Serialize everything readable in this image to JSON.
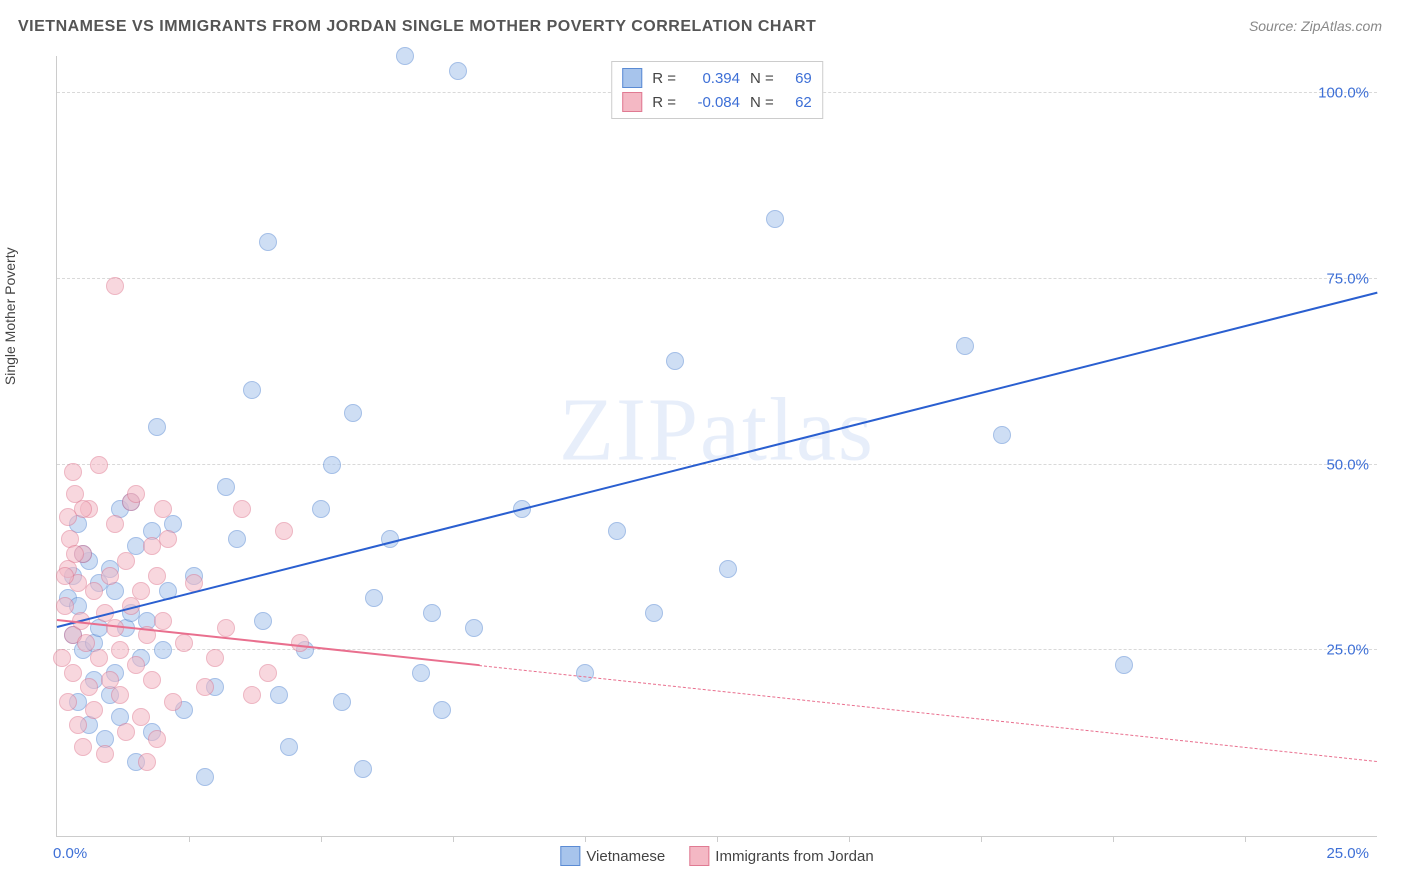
{
  "title_text": "VIETNAMESE VS IMMIGRANTS FROM JORDAN SINGLE MOTHER POVERTY CORRELATION CHART",
  "source_label": "Source: ZipAtlas.com",
  "y_axis_label": "Single Mother Poverty",
  "watermark_text": "ZIPatlas",
  "chart": {
    "type": "scatter",
    "background_color": "#ffffff",
    "grid_color": "#d9d9d9",
    "xlim": [
      0,
      25
    ],
    "ylim": [
      0,
      105
    ],
    "y_gridlines": [
      25,
      50,
      75,
      100
    ],
    "y_tick_labels": [
      "25.0%",
      "50.0%",
      "75.0%",
      "100.0%"
    ],
    "x_origin_label": "0.0%",
    "x_max_label": "25.0%",
    "x_ticks": [
      2.5,
      5,
      7.5,
      10,
      12.5,
      15,
      17.5,
      20,
      22.5
    ],
    "marker_radius": 8,
    "series": [
      {
        "name": "Vietnamese",
        "fill_color": "#a7c4ec",
        "stroke_color": "#5b8bd4",
        "points": [
          [
            0.2,
            32
          ],
          [
            0.3,
            35
          ],
          [
            0.4,
            18
          ],
          [
            0.4,
            42
          ],
          [
            0.5,
            25
          ],
          [
            0.6,
            15
          ],
          [
            0.6,
            37
          ],
          [
            0.7,
            26
          ],
          [
            0.8,
            28
          ],
          [
            0.9,
            13
          ],
          [
            1.0,
            19
          ],
          [
            1.1,
            33
          ],
          [
            1.1,
            22
          ],
          [
            1.2,
            44
          ],
          [
            1.3,
            28
          ],
          [
            1.4,
            45
          ],
          [
            1.5,
            39
          ],
          [
            1.5,
            10
          ],
          [
            1.7,
            29
          ],
          [
            1.8,
            41
          ],
          [
            1.9,
            55
          ],
          [
            2.0,
            25
          ],
          [
            2.2,
            42
          ],
          [
            2.4,
            17
          ],
          [
            2.6,
            35
          ],
          [
            2.8,
            8
          ],
          [
            3.0,
            20
          ],
          [
            3.2,
            47
          ],
          [
            3.4,
            40
          ],
          [
            3.7,
            60
          ],
          [
            3.9,
            29
          ],
          [
            4.0,
            80
          ],
          [
            4.2,
            19
          ],
          [
            4.4,
            12
          ],
          [
            4.7,
            25
          ],
          [
            5.0,
            44
          ],
          [
            5.2,
            50
          ],
          [
            5.4,
            18
          ],
          [
            5.6,
            57
          ],
          [
            5.8,
            9
          ],
          [
            6.0,
            32
          ],
          [
            6.3,
            40
          ],
          [
            6.6,
            105
          ],
          [
            6.9,
            22
          ],
          [
            7.1,
            30
          ],
          [
            7.3,
            17
          ],
          [
            7.6,
            103
          ],
          [
            7.9,
            28
          ],
          [
            8.8,
            44
          ],
          [
            10.0,
            22
          ],
          [
            10.6,
            41
          ],
          [
            11.3,
            30
          ],
          [
            12.7,
            36
          ],
          [
            11.7,
            64
          ],
          [
            13.6,
            83
          ],
          [
            17.2,
            66
          ],
          [
            17.9,
            54
          ],
          [
            20.2,
            23
          ],
          [
            0.3,
            27
          ],
          [
            0.4,
            31
          ],
          [
            0.5,
            38
          ],
          [
            0.7,
            21
          ],
          [
            0.8,
            34
          ],
          [
            1.0,
            36
          ],
          [
            1.2,
            16
          ],
          [
            1.4,
            30
          ],
          [
            1.6,
            24
          ],
          [
            1.8,
            14
          ],
          [
            2.1,
            33
          ]
        ],
        "trend": {
          "x0": 0,
          "y0": 28,
          "x1": 25,
          "y1": 73,
          "color": "#2a5fd0",
          "width": 2.5,
          "solid_until_x": 25
        }
      },
      {
        "name": "Immigrants from Jordan",
        "fill_color": "#f4b8c4",
        "stroke_color": "#e07a92",
        "points": [
          [
            0.1,
            24
          ],
          [
            0.15,
            31
          ],
          [
            0.2,
            18
          ],
          [
            0.2,
            36
          ],
          [
            0.25,
            40
          ],
          [
            0.3,
            22
          ],
          [
            0.3,
            27
          ],
          [
            0.35,
            46
          ],
          [
            0.4,
            34
          ],
          [
            0.4,
            15
          ],
          [
            0.45,
            29
          ],
          [
            0.5,
            12
          ],
          [
            0.5,
            38
          ],
          [
            0.55,
            26
          ],
          [
            0.6,
            44
          ],
          [
            0.6,
            20
          ],
          [
            0.7,
            33
          ],
          [
            0.7,
            17
          ],
          [
            0.8,
            24
          ],
          [
            0.8,
            50
          ],
          [
            0.9,
            30
          ],
          [
            0.9,
            11
          ],
          [
            1.0,
            21
          ],
          [
            1.0,
            35
          ],
          [
            1.1,
            28
          ],
          [
            1.1,
            42
          ],
          [
            1.2,
            19
          ],
          [
            1.2,
            25
          ],
          [
            1.3,
            14
          ],
          [
            1.3,
            37
          ],
          [
            1.4,
            31
          ],
          [
            1.4,
            45
          ],
          [
            1.5,
            46
          ],
          [
            1.5,
            23
          ],
          [
            1.6,
            16
          ],
          [
            1.6,
            33
          ],
          [
            1.7,
            27
          ],
          [
            1.7,
            10
          ],
          [
            1.8,
            39
          ],
          [
            1.8,
            21
          ],
          [
            1.9,
            35
          ],
          [
            1.9,
            13
          ],
          [
            2.0,
            29
          ],
          [
            2.0,
            44
          ],
          [
            2.2,
            18
          ],
          [
            2.4,
            26
          ],
          [
            2.6,
            34
          ],
          [
            2.8,
            20
          ],
          [
            3.0,
            24
          ],
          [
            3.2,
            28
          ],
          [
            3.5,
            44
          ],
          [
            3.7,
            19
          ],
          [
            4.0,
            22
          ],
          [
            4.3,
            41
          ],
          [
            4.6,
            26
          ],
          [
            1.1,
            74
          ],
          [
            0.5,
            44
          ],
          [
            0.3,
            49
          ],
          [
            0.2,
            43
          ],
          [
            0.35,
            38
          ],
          [
            2.1,
            40
          ],
          [
            0.15,
            35
          ]
        ],
        "trend": {
          "x0": 0,
          "y0": 29,
          "x1": 25,
          "y1": 10,
          "color": "#e96f8e",
          "width": 2,
          "solid_until_x": 8
        }
      }
    ]
  },
  "legend_top": {
    "rows": [
      {
        "swatch_fill": "#a7c4ec",
        "swatch_stroke": "#5b8bd4",
        "R": "0.394",
        "N": "69"
      },
      {
        "swatch_fill": "#f4b8c4",
        "swatch_stroke": "#e07a92",
        "R": "-0.084",
        "N": "62"
      }
    ],
    "r_label": "R =",
    "n_label": "N ="
  },
  "legend_bottom": {
    "items": [
      {
        "swatch_fill": "#a7c4ec",
        "swatch_stroke": "#5b8bd4",
        "label": "Vietnamese"
      },
      {
        "swatch_fill": "#f4b8c4",
        "swatch_stroke": "#e07a92",
        "label": "Immigrants from Jordan"
      }
    ]
  }
}
